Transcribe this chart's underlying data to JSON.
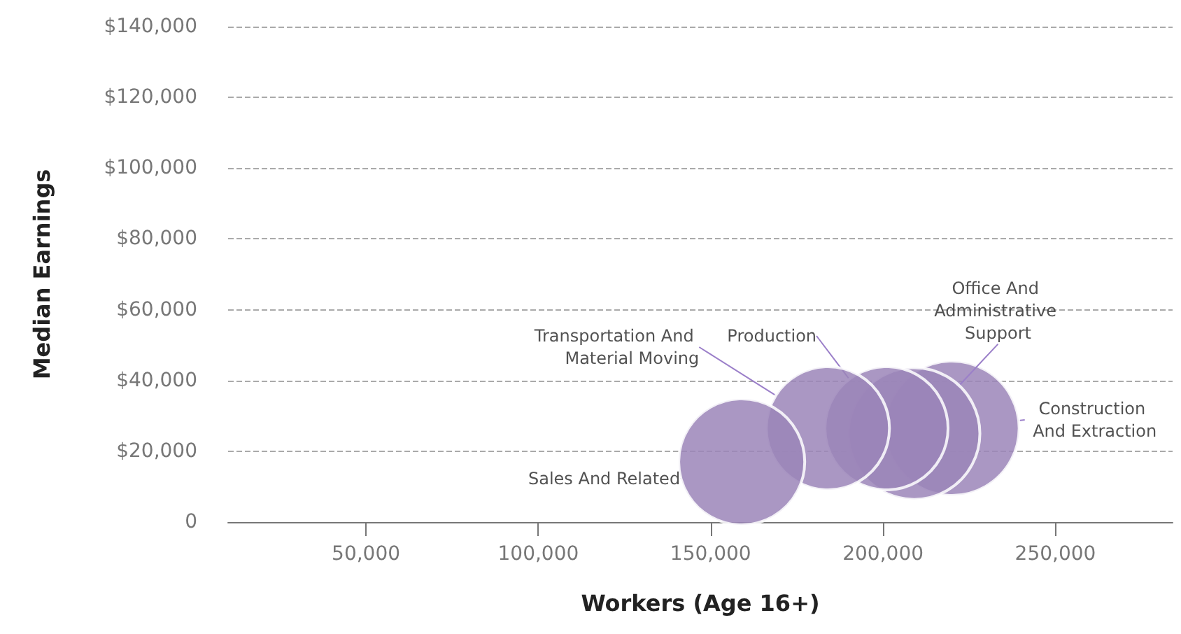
{
  "chart_data": {
    "type": "bubble",
    "xlabel": "Workers (Age 16+)",
    "ylabel": "Median Earnings",
    "xlim": [
      10000,
      284000
    ],
    "xticks": [
      {
        "value": 50000,
        "label": "50,000"
      },
      {
        "value": 100000,
        "label": "100,000"
      },
      {
        "value": 150000,
        "label": "150,000"
      },
      {
        "value": 200000,
        "label": "200,000"
      },
      {
        "value": 250000,
        "label": "250,000"
      }
    ],
    "ylim": [
      0,
      140000
    ],
    "yticks": [
      {
        "value": 0,
        "label": "0"
      },
      {
        "value": 20000,
        "label": "$20,000"
      },
      {
        "value": 40000,
        "label": "$40,000"
      },
      {
        "value": 60000,
        "label": "$60,000"
      },
      {
        "value": 80000,
        "label": "$80,000"
      },
      {
        "value": 100000,
        "label": "$100,000"
      },
      {
        "value": 120000,
        "label": "$120,000"
      },
      {
        "value": 140000,
        "label": "$140,000"
      }
    ],
    "grid": "y",
    "legend": false,
    "series": [
      {
        "name": "Construction And Extraction",
        "color": "#9b85b8",
        "x": [
          220000
        ],
        "values": [
          26500
        ],
        "sizes": [
          1.0
        ]
      },
      {
        "name": "Office And Administrative Support",
        "color": "#9b85b8",
        "x": [
          209000
        ],
        "values": [
          25000
        ],
        "sizes": [
          0.96
        ]
      },
      {
        "name": "Production",
        "color": "#9b85b8",
        "x": [
          201000
        ],
        "values": [
          26500
        ],
        "sizes": [
          0.84
        ]
      },
      {
        "name": "Transportation And Material Moving",
        "color": "#9b85b8",
        "x": [
          184000
        ],
        "values": [
          26500
        ],
        "sizes": [
          0.84
        ]
      },
      {
        "name": "Sales And Related",
        "color": "#9b85b8",
        "x": [
          159000
        ],
        "values": [
          17000
        ],
        "sizes": [
          0.88
        ]
      }
    ]
  }
}
